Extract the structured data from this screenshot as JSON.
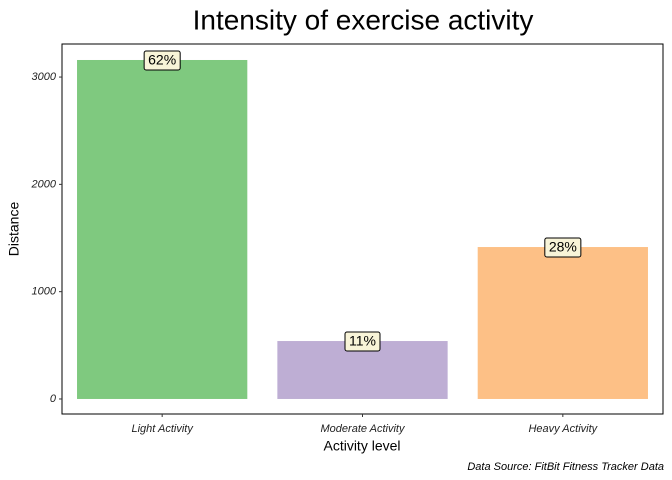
{
  "chart_data": {
    "type": "bar",
    "title": "Intensity of exercise activity",
    "x_label": "Activity level",
    "y_label": "Distance",
    "caption": "Data Source: FitBit Fitness Tracker Data",
    "categories": [
      "Light Activity",
      "Moderate Activity",
      "Heavy Activity"
    ],
    "values": [
      3159,
      540,
      1416
    ],
    "percent_labels": [
      "62%",
      "11%",
      "28%"
    ],
    "colors": [
      "#7fc97f",
      "#beaed4",
      "#fdc086"
    ],
    "ylim": [
      -140,
      3308
    ],
    "yticks": [
      0,
      1000,
      2000,
      3000
    ],
    "grid": false
  }
}
